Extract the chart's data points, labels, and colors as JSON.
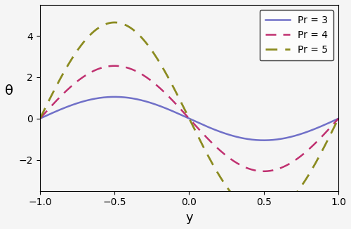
{
  "title": "",
  "xlabel": "y",
  "ylabel": "θ",
  "xlim": [
    -1.0,
    1.0
  ],
  "ylim": [
    -3.5,
    5.5
  ],
  "xticks": [
    -1.0,
    -0.5,
    0.0,
    0.5,
    1.0
  ],
  "yticks": [
    -2,
    0,
    2,
    4
  ],
  "curves": [
    {
      "label": "Pr = 3",
      "color": "#7070c8",
      "linestyle": "solid",
      "linewidth": 1.8,
      "amplitude": 1.05
    },
    {
      "label": "Pr = 4",
      "color": "#c03070",
      "linestyle": "dashed",
      "linewidth": 1.8,
      "amplitude": 2.55
    },
    {
      "label": "Pr = 5",
      "color": "#8b8b20",
      "linestyle": "dashed",
      "linewidth": 2.0,
      "amplitude": 4.65
    }
  ],
  "legend_loc": "upper right",
  "background_color": "#f5f5f5",
  "figsize": [
    5.0,
    3.26
  ],
  "dpi": 100
}
